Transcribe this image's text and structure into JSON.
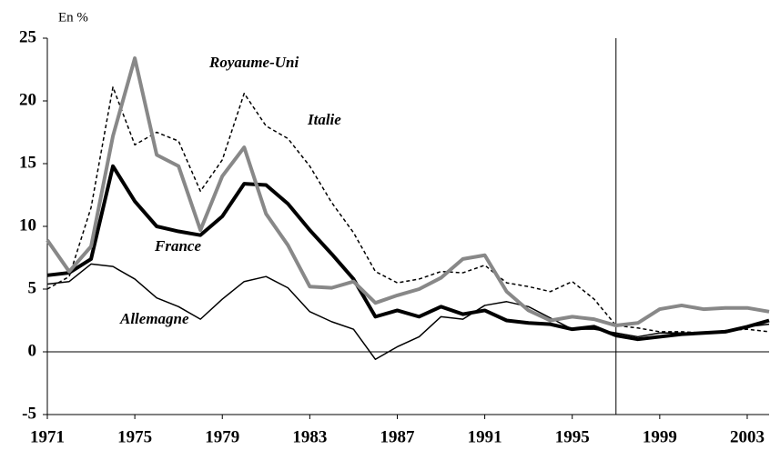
{
  "chart_data": {
    "type": "line",
    "y_unit_label": "En %",
    "x": [
      1971,
      1972,
      1973,
      1974,
      1975,
      1976,
      1977,
      1978,
      1979,
      1980,
      1981,
      1982,
      1983,
      1984,
      1985,
      1986,
      1987,
      1988,
      1989,
      1990,
      1991,
      1992,
      1993,
      1994,
      1995,
      1996,
      1997,
      1998,
      1999,
      2000,
      2001,
      2002,
      2003,
      2004
    ],
    "series": [
      {
        "name": "France",
        "color": "#000000",
        "width": 4,
        "dash": false,
        "values": [
          6.1,
          6.3,
          7.4,
          14.8,
          12.0,
          10.0,
          9.6,
          9.3,
          10.8,
          13.4,
          13.3,
          11.8,
          9.7,
          7.8,
          5.8,
          2.8,
          3.3,
          2.8,
          3.6,
          3.0,
          3.3,
          2.5,
          2.3,
          2.2,
          1.8,
          2.0,
          1.3,
          1.0,
          1.2,
          1.4,
          1.5,
          1.6,
          2.0,
          2.5
        ]
      },
      {
        "name": "Royaume-Uni",
        "color": "#888888",
        "width": 4,
        "dash": false,
        "values": [
          8.9,
          6.4,
          8.4,
          17.2,
          23.4,
          15.7,
          14.8,
          9.7,
          14.0,
          16.3,
          11.0,
          8.5,
          5.2,
          5.1,
          5.6,
          3.9,
          4.5,
          5.0,
          5.9,
          7.4,
          7.7,
          4.8,
          3.3,
          2.5,
          2.8,
          2.6,
          2.1,
          2.3,
          3.4,
          3.7,
          3.4,
          3.5,
          3.5,
          3.2
        ]
      },
      {
        "name": "Italie",
        "color": "#000000",
        "width": 1.5,
        "dash": true,
        "values": [
          5.0,
          6.0,
          11.5,
          21.1,
          16.5,
          17.5,
          16.8,
          12.8,
          15.3,
          20.6,
          18.0,
          17.0,
          14.8,
          11.9,
          9.5,
          6.4,
          5.5,
          5.8,
          6.4,
          6.3,
          6.9,
          5.5,
          5.2,
          4.8,
          5.6,
          4.2,
          2.1,
          1.9,
          1.6,
          1.6,
          1.5,
          1.7,
          1.8,
          1.6
        ]
      },
      {
        "name": "Allemagne",
        "color": "#000000",
        "width": 1.5,
        "dash": false,
        "values": [
          5.4,
          5.6,
          7.0,
          6.8,
          5.8,
          4.3,
          3.6,
          2.6,
          4.2,
          5.6,
          6.0,
          5.1,
          3.2,
          2.4,
          1.8,
          -0.6,
          0.4,
          1.2,
          2.8,
          2.6,
          3.7,
          4.0,
          3.6,
          2.7,
          1.8,
          1.8,
          1.5,
          1.2,
          1.5,
          1.5,
          1.5,
          1.6,
          2.0,
          2.2
        ]
      }
    ],
    "xlim": [
      1971,
      2004
    ],
    "xticks": [
      1971,
      1975,
      1979,
      1983,
      1987,
      1991,
      1995,
      1999,
      2003
    ],
    "ylim": [
      -5,
      25
    ],
    "yticks": [
      -5,
      0,
      5,
      10,
      15,
      20,
      25
    ],
    "reference_line_x": 1997
  }
}
